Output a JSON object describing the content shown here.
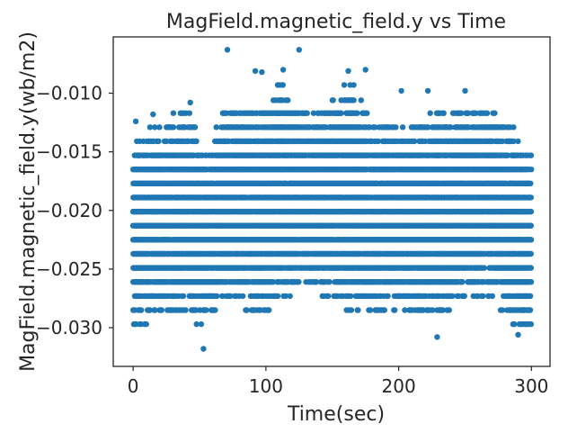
{
  "chart_data": {
    "type": "scatter",
    "title": "MagField.magnetic_field.y vs Time",
    "xlabel": "Time(sec)",
    "ylabel": "MagField.magnetic_field.y(wb/m2)",
    "xlim": [
      -15,
      314
    ],
    "ylim": [
      -0.0333,
      -0.0052
    ],
    "xticks": [
      0,
      100,
      200,
      300
    ],
    "xtick_labels": [
      "0",
      "100",
      "200",
      "300"
    ],
    "yticks": [
      -0.01,
      -0.015,
      -0.02,
      -0.025,
      -0.03
    ],
    "ytick_labels": [
      "−0.010",
      "−0.015",
      "−0.020",
      "−0.025",
      "−0.030"
    ],
    "grid": false,
    "marker_color": "#1f77b4",
    "x_range": [
      0,
      300
    ],
    "y_levels": [
      -0.0297,
      -0.0285,
      -0.0273,
      -0.0261,
      -0.0249,
      -0.0237,
      -0.0225,
      -0.0213,
      -0.0201,
      -0.0189,
      -0.0177,
      -0.0165,
      -0.0153,
      -0.0141,
      -0.0129,
      -0.0117,
      -0.0106,
      -0.0093,
      -0.0082
    ],
    "upper_envelope": [
      [
        0,
        -0.0141
      ],
      [
        20,
        -0.0129
      ],
      [
        40,
        -0.0117
      ],
      [
        55,
        -0.0153
      ],
      [
        70,
        -0.0117
      ],
      [
        95,
        -0.0117
      ],
      [
        110,
        -0.0093
      ],
      [
        125,
        -0.0117
      ],
      [
        140,
        -0.0117
      ],
      [
        165,
        -0.0093
      ],
      [
        180,
        -0.0129
      ],
      [
        200,
        -0.0129
      ],
      [
        215,
        -0.0129
      ],
      [
        230,
        -0.0117
      ],
      [
        250,
        -0.0117
      ],
      [
        265,
        -0.0117
      ],
      [
        285,
        -0.0129
      ],
      [
        300,
        -0.0153
      ]
    ],
    "lower_envelope": [
      [
        0,
        -0.0297
      ],
      [
        20,
        -0.0285
      ],
      [
        40,
        -0.0285
      ],
      [
        55,
        -0.0297
      ],
      [
        70,
        -0.0273
      ],
      [
        95,
        -0.0285
      ],
      [
        110,
        -0.0273
      ],
      [
        130,
        -0.0261
      ],
      [
        150,
        -0.0273
      ],
      [
        170,
        -0.0285
      ],
      [
        190,
        -0.0285
      ],
      [
        210,
        -0.0285
      ],
      [
        230,
        -0.0285
      ],
      [
        250,
        -0.0273
      ],
      [
        270,
        -0.0273
      ],
      [
        290,
        -0.0297
      ],
      [
        300,
        -0.0297
      ]
    ],
    "outliers": [
      [
        2,
        -0.0124
      ],
      [
        15,
        -0.0118
      ],
      [
        43,
        -0.0108
      ],
      [
        53,
        -0.0318
      ],
      [
        71,
        -0.0063
      ],
      [
        92,
        -0.0081
      ],
      [
        97,
        -0.0082
      ],
      [
        113,
        -0.008
      ],
      [
        125,
        -0.0063
      ],
      [
        162,
        -0.0081
      ],
      [
        175,
        -0.008
      ],
      [
        202,
        -0.0098
      ],
      [
        222,
        -0.0098
      ],
      [
        229,
        -0.0308
      ],
      [
        250,
        -0.0098
      ],
      [
        290,
        -0.0306
      ]
    ]
  }
}
